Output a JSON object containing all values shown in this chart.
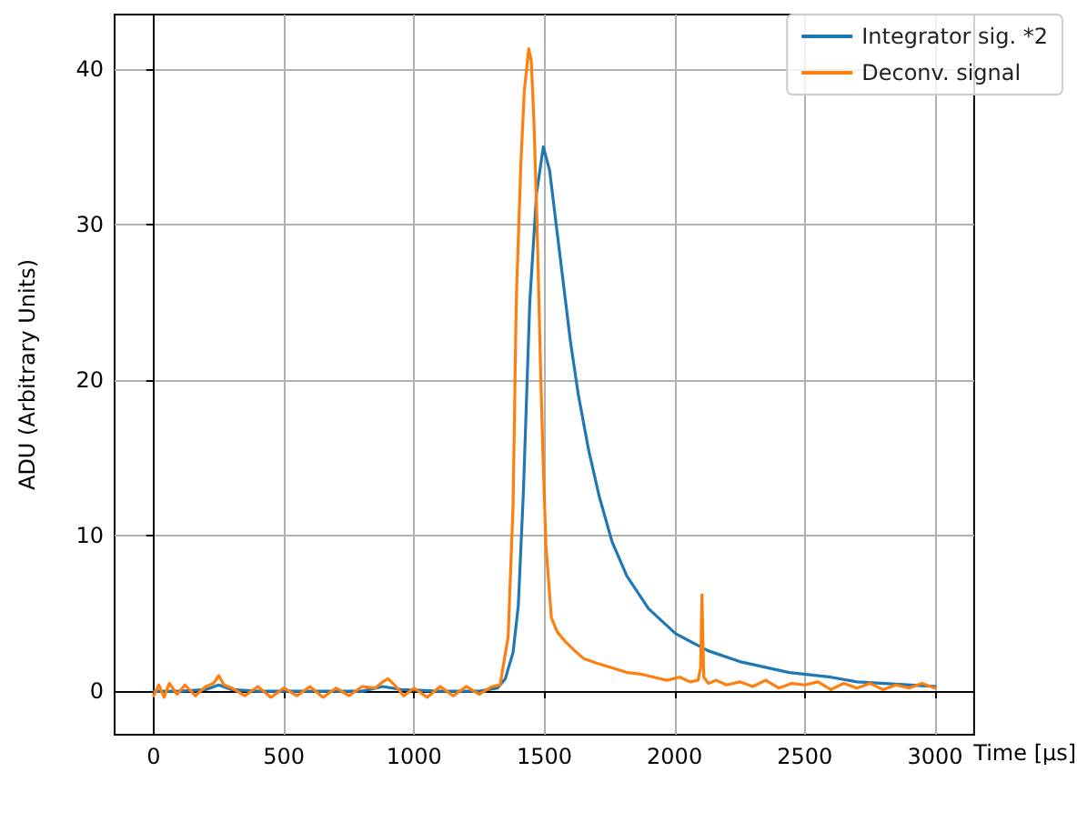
{
  "chart_data": {
    "type": "line",
    "xlabel": "Time [μs]",
    "ylabel": "ADU (Arbitrary Units)",
    "xlim": [
      -150,
      3150
    ],
    "ylim": [
      -2.8,
      43.5
    ],
    "xticks": [
      0,
      500,
      1000,
      1500,
      2000,
      2500,
      3000
    ],
    "yticks": [
      0,
      10,
      20,
      30,
      40
    ],
    "grid": true,
    "legend": "top right",
    "marker": "none",
    "line_style": "solid",
    "series": [
      {
        "name": "Integrator sig. *2",
        "color": "#1f77b4",
        "x": [
          0,
          100,
          200,
          250,
          300,
          400,
          600,
          800,
          880,
          950,
          1100,
          1250,
          1320,
          1350,
          1380,
          1400,
          1420,
          1444,
          1470,
          1496,
          1520,
          1568,
          1600,
          1630,
          1670,
          1711,
          1760,
          1817,
          1900,
          2004,
          2128,
          2250,
          2440,
          2600,
          2700,
          2850,
          3000
        ],
        "values": [
          0,
          0,
          0.1,
          0.4,
          0.1,
          0,
          0,
          0,
          0.3,
          0.1,
          0,
          0,
          0.2,
          0.8,
          2.5,
          5.5,
          13,
          25,
          32,
          35,
          33.5,
          26.9,
          22.5,
          19.1,
          15.5,
          12.5,
          9.6,
          7.4,
          5.3,
          3.7,
          2.6,
          1.9,
          1.2,
          0.9,
          0.6,
          0.45,
          0.3
        ]
      },
      {
        "name": "Deconv. signal",
        "color": "#ff7f0e",
        "x": [
          0,
          20,
          40,
          60,
          90,
          120,
          160,
          200,
          230,
          250,
          270,
          300,
          350,
          400,
          450,
          500,
          550,
          600,
          650,
          700,
          750,
          800,
          850,
          880,
          900,
          930,
          960,
          1000,
          1050,
          1100,
          1150,
          1200,
          1250,
          1300,
          1330,
          1361,
          1380,
          1392,
          1410,
          1423,
          1440,
          1450,
          1460,
          1472,
          1485,
          1495,
          1506,
          1527,
          1550,
          1580,
          1610,
          1650,
          1700,
          1760,
          1817,
          1870,
          1920,
          1970,
          2020,
          2060,
          2090,
          2100,
          2105,
          2112,
          2130,
          2160,
          2200,
          2250,
          2300,
          2350,
          2400,
          2450,
          2500,
          2550,
          2600,
          2650,
          2700,
          2750,
          2800,
          2850,
          2900,
          2950,
          3000
        ],
        "values": [
          -0.3,
          0.4,
          -0.4,
          0.5,
          -0.2,
          0.4,
          -0.3,
          0.3,
          0.5,
          1.0,
          0.4,
          0.2,
          -0.3,
          0.3,
          -0.4,
          0.2,
          -0.3,
          0.3,
          -0.4,
          0.2,
          -0.3,
          0.3,
          0.2,
          0.6,
          0.8,
          0.3,
          -0.3,
          0.2,
          -0.4,
          0.3,
          -0.3,
          0.3,
          -0.2,
          0.3,
          0.4,
          3.5,
          12,
          25,
          34,
          38.6,
          41.3,
          40.5,
          36.6,
          30,
          21,
          15,
          9.4,
          4.7,
          3.8,
          3.2,
          2.7,
          2.1,
          1.8,
          1.5,
          1.2,
          1.1,
          0.9,
          0.7,
          0.9,
          0.6,
          0.7,
          1.5,
          6.2,
          0.9,
          0.5,
          0.7,
          0.4,
          0.6,
          0.3,
          0.7,
          0.2,
          0.5,
          0.4,
          0.6,
          0.1,
          0.5,
          0.2,
          0.5,
          0.1,
          0.4,
          0.2,
          0.5,
          0.2
        ]
      }
    ]
  }
}
